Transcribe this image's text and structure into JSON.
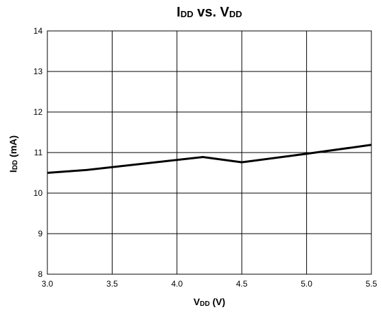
{
  "chart_data": {
    "type": "line",
    "title": {
      "main1": "I",
      "sub1": "DD",
      "mid": " vs. V",
      "sub2": "DD"
    },
    "xlabel": {
      "main": "V",
      "sub": "DD",
      "suffix": " (V)"
    },
    "ylabel": {
      "main": "I",
      "sub": "DD",
      "suffix": " (mA)"
    },
    "xlim": [
      3.0,
      5.5
    ],
    "ylim": [
      8,
      14
    ],
    "xticks": [
      "3.0",
      "3.5",
      "4.0",
      "4.5",
      "5.0",
      "5.5"
    ],
    "yticks": [
      "8",
      "9",
      "10",
      "11",
      "12",
      "13",
      "14"
    ],
    "series": [
      {
        "x": [
          3.0,
          3.3,
          4.2,
          4.5,
          5.0,
          5.5
        ],
        "y": [
          10.5,
          10.57,
          10.89,
          10.76,
          10.97,
          11.19
        ]
      }
    ],
    "grid": true,
    "line_color": "#000000"
  }
}
